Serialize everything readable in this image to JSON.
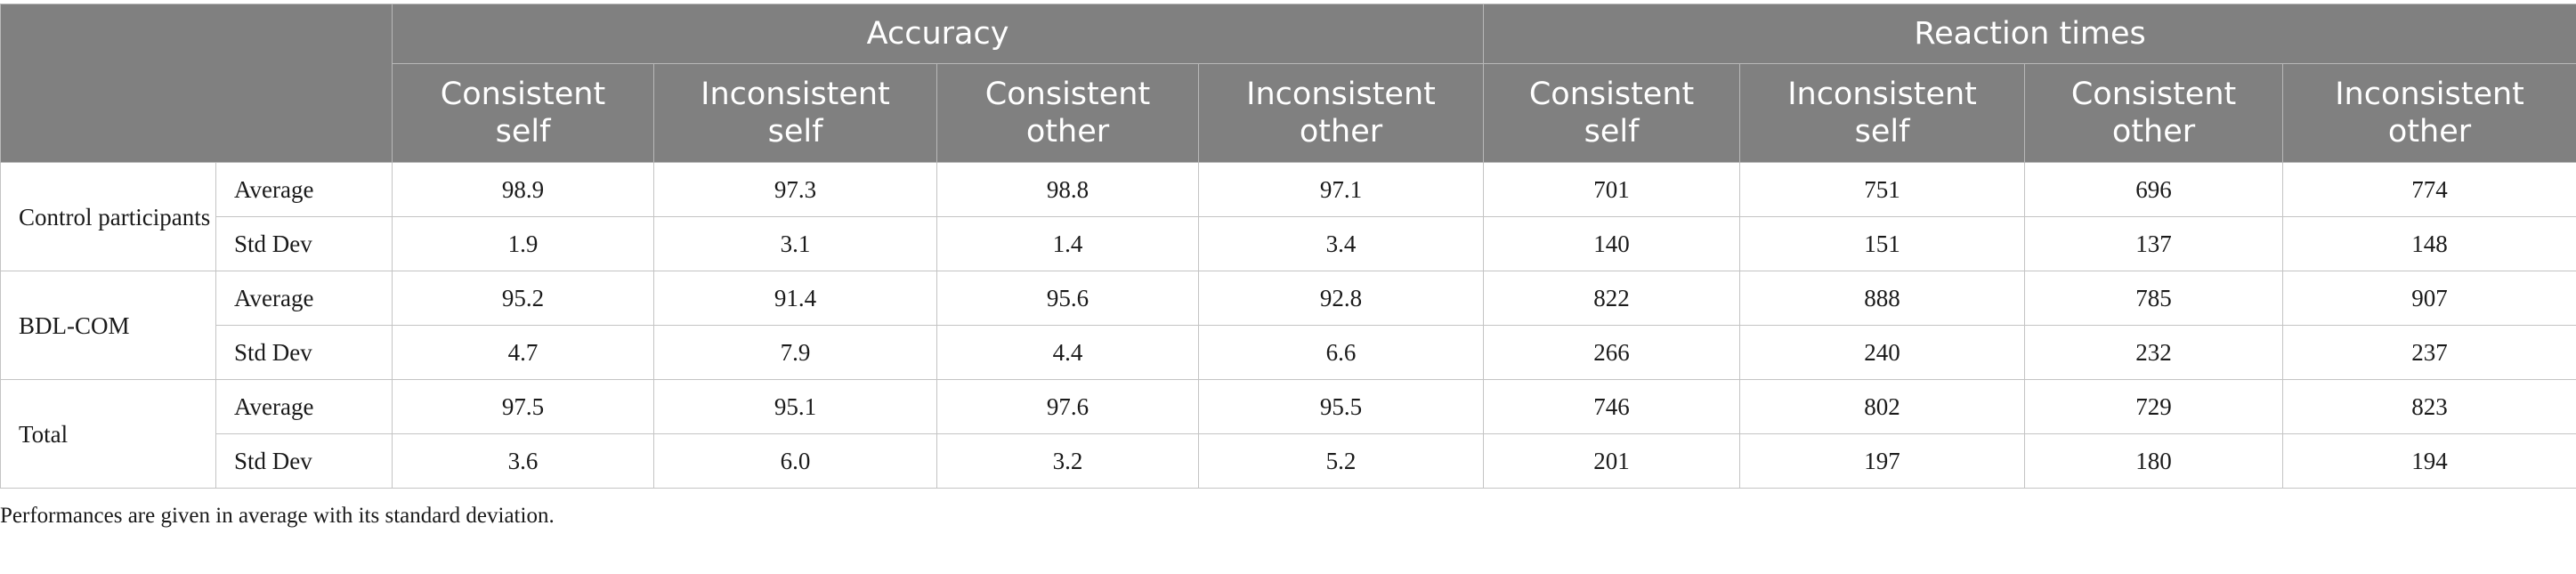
{
  "table": {
    "groups": [
      {
        "label": "Accuracy"
      },
      {
        "label": "Reaction times"
      }
    ],
    "conditions": [
      {
        "line1": "Consistent",
        "line2": "self"
      },
      {
        "line1": "Inconsistent",
        "line2": "self"
      },
      {
        "line1": "Consistent",
        "line2": "other"
      },
      {
        "line1": "Inconsistent",
        "line2": "other"
      },
      {
        "line1": "Consistent",
        "line2": "self"
      },
      {
        "line1": "Inconsistent",
        "line2": "self"
      },
      {
        "line1": "Consistent",
        "line2": "other"
      },
      {
        "line1": "Inconsistent",
        "line2": "other"
      }
    ],
    "rows": [
      {
        "group": "Control participants",
        "stats": [
          {
            "label": "Average",
            "values": [
              "98.9",
              "97.3",
              "98.8",
              "97.1",
              "701",
              "751",
              "696",
              "774"
            ]
          },
          {
            "label": "Std Dev",
            "values": [
              "1.9",
              "3.1",
              "1.4",
              "3.4",
              "140",
              "151",
              "137",
              "148"
            ]
          }
        ]
      },
      {
        "group": "BDL-COM",
        "stats": [
          {
            "label": "Average",
            "values": [
              "95.2",
              "91.4",
              "95.6",
              "92.8",
              "822",
              "888",
              "785",
              "907"
            ]
          },
          {
            "label": "Std Dev",
            "values": [
              "4.7",
              "7.9",
              "4.4",
              "6.6",
              "266",
              "240",
              "232",
              "237"
            ]
          }
        ]
      },
      {
        "group": "Total",
        "stats": [
          {
            "label": "Average",
            "values": [
              "97.5",
              "95.1",
              "97.6",
              "95.5",
              "746",
              "802",
              "729",
              "823"
            ]
          },
          {
            "label": "Std Dev",
            "values": [
              "3.6",
              "6.0",
              "3.2",
              "5.2",
              "201",
              "197",
              "180",
              "194"
            ]
          }
        ]
      }
    ]
  },
  "caption": "Performances are given in average with its standard deviation.",
  "colors": {
    "header_bg": "#808080",
    "header_text": "#ffffff",
    "border": "#c4c4c4"
  }
}
